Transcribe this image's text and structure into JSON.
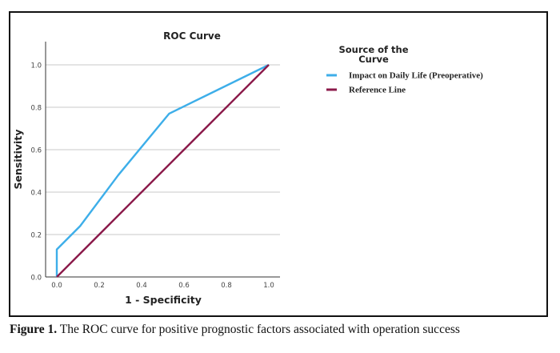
{
  "figure": {
    "caption_label": "Figure 1.",
    "caption_text": " The ROC curve for positive prognostic factors associated with operation success"
  },
  "chart_data": {
    "type": "line",
    "title": "ROC Curve",
    "xlabel": "1 - Specificity",
    "ylabel": "Sensitivity",
    "xlim": [
      0,
      1
    ],
    "ylim": [
      0,
      1.1
    ],
    "xticks": [
      "0.0",
      "0.2",
      "0.4",
      "0.6",
      "0.8",
      "1.0"
    ],
    "yticks": [
      "0.0",
      "0.2",
      "0.4",
      "0.6",
      "0.8",
      "1.0"
    ],
    "grid": "horizontal",
    "legend": {
      "title": "Source of the Curve",
      "title_line1": "Source of the",
      "title_line2": "Curve",
      "placement": "right"
    },
    "series": [
      {
        "name": "Impact on Daily Life (Preoperative)",
        "color": "#3daee9",
        "x": [
          0.0,
          0.0,
          0.11,
          0.29,
          0.53,
          1.0
        ],
        "y": [
          0.0,
          0.13,
          0.24,
          0.48,
          0.77,
          1.0
        ]
      },
      {
        "name": "Reference Line",
        "color": "#8b1a4a",
        "x": [
          0.0,
          1.0
        ],
        "y": [
          0.0,
          1.0
        ]
      }
    ]
  }
}
